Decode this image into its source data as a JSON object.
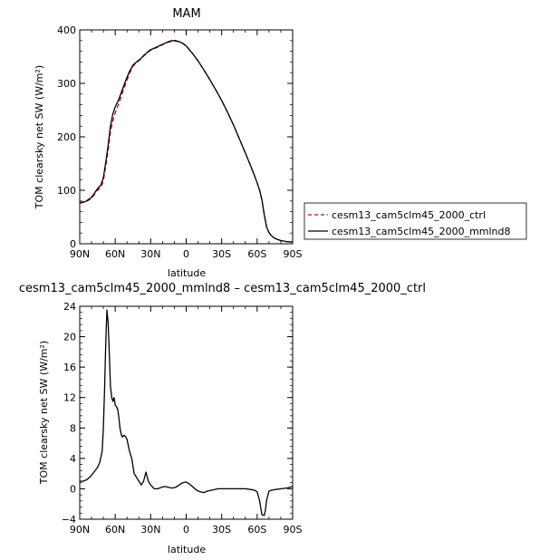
{
  "chart_data": [
    {
      "type": "line",
      "title": "MAM",
      "xlabel": "latitude",
      "ylabel": "TOM clearsky net SW (W/m²)",
      "x_tick_labels": [
        "90N",
        "60N",
        "30N",
        "0",
        "30S",
        "60S",
        "90S"
      ],
      "x_tick_values": [
        90,
        60,
        30,
        0,
        -30,
        -60,
        -90
      ],
      "xlim": [
        90,
        -90
      ],
      "ylim": [
        0,
        400
      ],
      "y_ticks": [
        0,
        100,
        200,
        300,
        400
      ],
      "legend_position": "right",
      "series": [
        {
          "name": "cesm13_cam5clm45_2000_ctrl",
          "color": "#cc0000",
          "dash": "dashed",
          "x": [
            90,
            85,
            80,
            75,
            72,
            70,
            68,
            66,
            64,
            62,
            60,
            57,
            54,
            51,
            48,
            45,
            42,
            39,
            36,
            33,
            30,
            27,
            24,
            21,
            18,
            15,
            12,
            9,
            6,
            3,
            0,
            -5,
            -10,
            -15,
            -20,
            -25,
            -30,
            -35,
            -40,
            -45,
            -50,
            -55,
            -58,
            -60,
            -62,
            -64,
            -66,
            -68,
            -70,
            -72,
            -75,
            -80,
            -85,
            -90
          ],
          "y": [
            76,
            78,
            85,
            100,
            106,
            118,
            145,
            175,
            210,
            230,
            245,
            262,
            282,
            300,
            318,
            332,
            339,
            344,
            351,
            357,
            362,
            365,
            368,
            371,
            375,
            377,
            379,
            379,
            378,
            375,
            370,
            357,
            342,
            325,
            307,
            288,
            268,
            246,
            222,
            196,
            170,
            143,
            126,
            114,
            101,
            82,
            55,
            32,
            21,
            15,
            10,
            6,
            4,
            3
          ]
        },
        {
          "name": "cesm13_cam5clm45_2000_mmlnd8",
          "color": "#000000",
          "dash": "solid",
          "x": [
            90,
            85,
            80,
            75,
            72,
            70,
            68,
            66,
            64,
            62,
            60,
            57,
            54,
            51,
            48,
            45,
            42,
            39,
            36,
            33,
            30,
            27,
            24,
            21,
            18,
            15,
            12,
            9,
            6,
            3,
            0,
            -5,
            -10,
            -15,
            -20,
            -25,
            -30,
            -35,
            -40,
            -45,
            -50,
            -55,
            -58,
            -60,
            -62,
            -64,
            -66,
            -68,
            -70,
            -72,
            -75,
            -80,
            -85,
            -90
          ],
          "y": [
            77,
            79,
            87,
            103,
            110,
            124,
            152,
            183,
            220,
            243,
            256,
            270,
            288,
            306,
            322,
            334,
            340,
            345,
            352,
            358,
            363,
            366,
            369,
            372,
            375,
            378,
            380,
            380,
            378,
            375,
            370,
            357,
            342,
            325,
            307,
            288,
            268,
            246,
            222,
            196,
            170,
            143,
            126,
            114,
            101,
            82,
            54,
            31,
            21,
            15,
            10,
            6,
            4,
            3
          ]
        }
      ]
    },
    {
      "type": "line",
      "title": "cesm13_cam5clm45_2000_mmlnd8 – cesm13_cam5clm45_2000_ctrl",
      "xlabel": "latitude",
      "ylabel": "TOM clearsky net SW (W/m²)",
      "x_tick_labels": [
        "90N",
        "60N",
        "30N",
        "0",
        "30S",
        "60S",
        "90S"
      ],
      "x_tick_values": [
        90,
        60,
        30,
        0,
        -30,
        -60,
        -90
      ],
      "xlim": [
        90,
        -90
      ],
      "ylim": [
        -4,
        24
      ],
      "y_ticks": [
        -4,
        0,
        4,
        8,
        12,
        16,
        20,
        24
      ],
      "series": [
        {
          "name": "",
          "color": "#000000",
          "dash": "solid",
          "x": [
            90,
            87,
            84,
            81,
            78,
            75,
            73,
            71,
            70,
            69,
            68,
            67,
            66,
            65,
            64,
            63,
            62,
            61,
            60,
            59,
            58,
            57,
            56,
            55,
            54,
            53,
            52,
            51,
            50,
            48,
            46,
            44,
            42,
            40,
            38,
            36,
            34,
            32,
            30,
            27,
            24,
            21,
            18,
            15,
            12,
            9,
            6,
            3,
            0,
            -3,
            -6,
            -9,
            -12,
            -15,
            -18,
            -21,
            -24,
            -27,
            -30,
            -35,
            -40,
            -45,
            -50,
            -55,
            -58,
            -60,
            -62,
            -64,
            -66,
            -67,
            -68,
            -70,
            -72,
            -75,
            -80,
            -85,
            -90
          ],
          "y": [
            1,
            1,
            1.2,
            1.6,
            2.2,
            2.8,
            3.5,
            5,
            8,
            13,
            19,
            23.5,
            22,
            18,
            13.5,
            12,
            11.5,
            12,
            11,
            10.8,
            10.5,
            9.5,
            8,
            7.2,
            6.8,
            7,
            7,
            6.8,
            6.5,
            5,
            4,
            2,
            1.5,
            1,
            0.5,
            1,
            2.2,
            1,
            0.5,
            0,
            0,
            0.2,
            0.3,
            0.2,
            0.1,
            0.2,
            0.5,
            0.8,
            0.9,
            0.6,
            0.2,
            -0.2,
            -0.4,
            -0.5,
            -0.3,
            -0.2,
            -0.1,
            0,
            0,
            0,
            0,
            0,
            0,
            -0.1,
            -0.2,
            -0.4,
            -1.5,
            -3.4,
            -3.5,
            -2.8,
            -1.5,
            -0.3,
            -0.2,
            -0.1,
            0,
            0.1,
            0.3
          ]
        }
      ]
    }
  ]
}
